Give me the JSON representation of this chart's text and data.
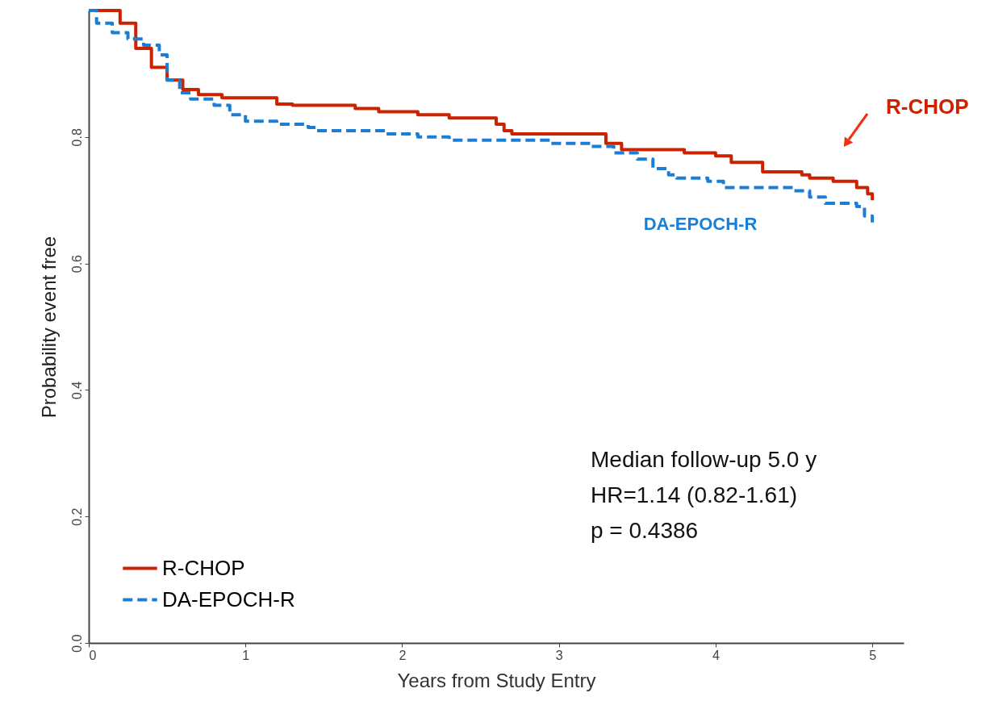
{
  "chart_data": {
    "type": "step",
    "xlabel": "Years from Study Entry",
    "ylabel": "Probability event free",
    "xlim": [
      0,
      5.2
    ],
    "ylim": [
      0,
      1
    ],
    "xticks": [
      0,
      1,
      2,
      3,
      4,
      5
    ],
    "yticks": [
      {
        "value": 0,
        "label": "0.0"
      },
      0.2,
      0.4,
      0.6,
      0.8
    ],
    "grid": false,
    "legend": "bottom left",
    "series": [
      {
        "name": "R-CHOP",
        "color": "#cc2200",
        "line_style": "solid",
        "x": [
          0,
          0.2,
          0.3,
          0.4,
          0.5,
          0.6,
          0.7,
          0.85,
          1.2,
          1.3,
          1.7,
          1.85,
          2.1,
          2.3,
          2.6,
          2.65,
          2.7,
          3.3,
          3.4,
          3.45,
          3.8,
          4.0,
          4.1,
          4.3,
          4.55,
          4.6,
          4.75,
          4.9,
          4.97,
          5.0
        ],
        "values": [
          1.0,
          0.98,
          0.94,
          0.91,
          0.89,
          0.875,
          0.867,
          0.862,
          0.852,
          0.85,
          0.845,
          0.84,
          0.835,
          0.83,
          0.82,
          0.81,
          0.805,
          0.79,
          0.78,
          0.78,
          0.775,
          0.77,
          0.76,
          0.745,
          0.74,
          0.735,
          0.73,
          0.72,
          0.71,
          0.7
        ]
      },
      {
        "name": "DA-EPOCH-R",
        "color": "#1a7fd4",
        "line_style": "dashed",
        "x": [
          0,
          0.05,
          0.15,
          0.25,
          0.35,
          0.45,
          0.5,
          0.58,
          0.65,
          0.8,
          0.9,
          1.0,
          1.2,
          1.4,
          1.45,
          1.9,
          2.1,
          2.3,
          2.95,
          3.2,
          3.35,
          3.5,
          3.6,
          3.7,
          3.75,
          3.95,
          4.05,
          4.5,
          4.6,
          4.7,
          4.9,
          4.95,
          5.0
        ],
        "values": [
          1.0,
          0.98,
          0.965,
          0.955,
          0.945,
          0.93,
          0.89,
          0.87,
          0.86,
          0.85,
          0.835,
          0.825,
          0.82,
          0.815,
          0.81,
          0.805,
          0.8,
          0.795,
          0.79,
          0.785,
          0.775,
          0.765,
          0.75,
          0.74,
          0.735,
          0.73,
          0.72,
          0.715,
          0.705,
          0.695,
          0.69,
          0.675,
          0.665
        ]
      }
    ],
    "annotations": [
      "Median follow-up 5.0 y",
      "HR=1.14 (0.82-1.61)",
      "p = 0.4386",
      "R-CHOP",
      "DA-EPOCH-R"
    ]
  }
}
